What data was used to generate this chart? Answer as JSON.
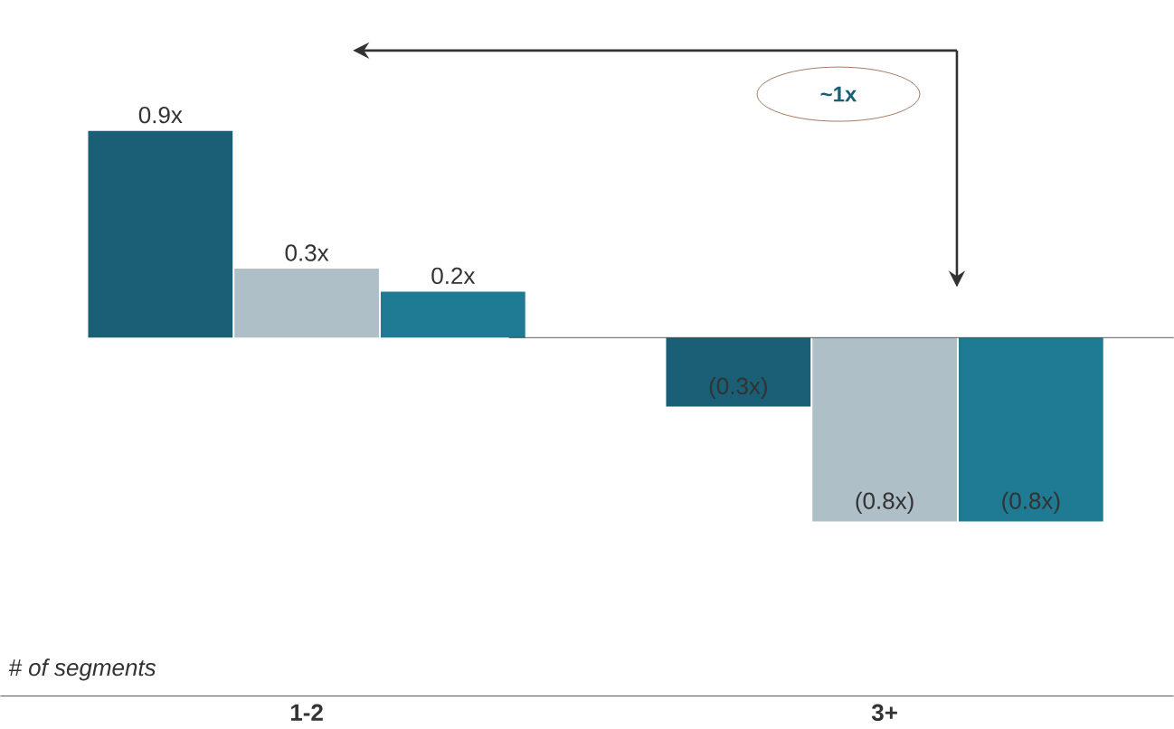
{
  "chart_data": {
    "type": "bar",
    "xlabel": "# of segments",
    "categories": [
      "1-2",
      "3+"
    ],
    "series": [
      {
        "color": "#1a5f75",
        "values": [
          0.9,
          -0.3
        ],
        "value_labels": [
          "0.9x",
          "(0.3x)"
        ]
      },
      {
        "color": "#aebfc8",
        "values": [
          0.3,
          -0.8
        ],
        "value_labels": [
          "0.3x",
          "(0.8x)"
        ]
      },
      {
        "color": "#1f7a93",
        "values": [
          0.2,
          -0.8
        ],
        "value_labels": [
          "0.2x",
          "(0.8x)"
        ]
      }
    ],
    "ref_lines": [
      {
        "axis": "y",
        "value": 0,
        "color": "#333333"
      }
    ],
    "annotations": [
      "~1x"
    ]
  }
}
